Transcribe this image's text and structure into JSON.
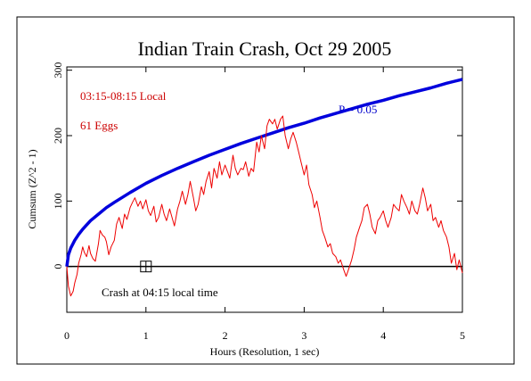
{
  "chart_data": {
    "type": "line",
    "title": "Indian Train Crash, Oct 29 2005",
    "xlabel": "Hours (Resolution, 1 sec)",
    "ylabel": "Cumsum (Z^2 - 1)",
    "xlim": [
      0,
      5
    ],
    "ylim": [
      -70,
      305
    ],
    "x_ticks": [
      0,
      1,
      2,
      3,
      4,
      5
    ],
    "y_ticks": [
      0,
      100,
      200,
      300
    ],
    "grid": false,
    "annotations": {
      "period": "03:15-08:15 Local",
      "eggs": "61 Eggs",
      "p_label": "P = 0.05",
      "event": "Crash at 04:15 local time"
    },
    "event_marker": {
      "x": 1.0,
      "y": 0
    },
    "colors": {
      "cumsum": "#ee0000",
      "envelope": "#0000dd",
      "baseline": "#000000",
      "annotation_red": "#cc0000",
      "annotation_blue": "#0000cc"
    },
    "series": [
      {
        "role": "cumsum",
        "color": "#ee0000",
        "x": [
          0,
          0.02,
          0.05,
          0.08,
          0.1,
          0.13,
          0.15,
          0.18,
          0.2,
          0.22,
          0.25,
          0.28,
          0.3,
          0.33,
          0.36,
          0.4,
          0.42,
          0.45,
          0.48,
          0.5,
          0.53,
          0.56,
          0.6,
          0.63,
          0.66,
          0.7,
          0.73,
          0.76,
          0.8,
          0.83,
          0.86,
          0.9,
          0.93,
          0.96,
          1.0,
          1.03,
          1.06,
          1.1,
          1.13,
          1.16,
          1.2,
          1.23,
          1.26,
          1.3,
          1.33,
          1.36,
          1.4,
          1.43,
          1.46,
          1.5,
          1.53,
          1.56,
          1.6,
          1.63,
          1.66,
          1.7,
          1.73,
          1.76,
          1.8,
          1.83,
          1.86,
          1.9,
          1.93,
          1.96,
          2.0,
          2.03,
          2.06,
          2.1,
          2.13,
          2.16,
          2.2,
          2.23,
          2.26,
          2.3,
          2.33,
          2.36,
          2.4,
          2.43,
          2.46,
          2.5,
          2.53,
          2.56,
          2.6,
          2.63,
          2.66,
          2.7,
          2.73,
          2.76,
          2.8,
          2.83,
          2.86,
          2.9,
          2.93,
          2.96,
          3.0,
          3.03,
          3.06,
          3.1,
          3.13,
          3.16,
          3.2,
          3.23,
          3.26,
          3.3,
          3.33,
          3.36,
          3.4,
          3.43,
          3.46,
          3.5,
          3.53,
          3.56,
          3.6,
          3.63,
          3.66,
          3.7,
          3.73,
          3.76,
          3.8,
          3.83,
          3.86,
          3.9,
          3.93,
          3.96,
          4.0,
          4.03,
          4.06,
          4.1,
          4.13,
          4.16,
          4.2,
          4.23,
          4.26,
          4.3,
          4.33,
          4.36,
          4.4,
          4.43,
          4.46,
          4.5,
          4.53,
          4.56,
          4.6,
          4.63,
          4.66,
          4.7,
          4.73,
          4.76,
          4.8,
          4.83,
          4.86,
          4.9,
          4.93,
          4.96,
          5.0
        ],
        "values": [
          0,
          -30,
          -45,
          -38,
          -25,
          -12,
          5,
          18,
          30,
          22,
          15,
          32,
          20,
          12,
          8,
          35,
          55,
          48,
          45,
          38,
          18,
          30,
          40,
          65,
          75,
          58,
          80,
          72,
          90,
          98,
          105,
          92,
          100,
          88,
          102,
          85,
          78,
          92,
          68,
          75,
          95,
          80,
          70,
          88,
          75,
          62,
          88,
          100,
          115,
          95,
          110,
          130,
          105,
          85,
          95,
          122,
          110,
          130,
          145,
          120,
          150,
          135,
          160,
          140,
          155,
          145,
          135,
          170,
          150,
          140,
          150,
          148,
          160,
          138,
          150,
          145,
          190,
          175,
          200,
          180,
          215,
          225,
          218,
          225,
          210,
          225,
          230,
          200,
          180,
          195,
          205,
          190,
          175,
          160,
          140,
          155,
          125,
          110,
          90,
          100,
          75,
          55,
          45,
          30,
          35,
          20,
          15,
          5,
          10,
          -5,
          -15,
          -5,
          10,
          25,
          45,
          60,
          70,
          90,
          95,
          80,
          60,
          50,
          70,
          75,
          85,
          70,
          60,
          75,
          95,
          90,
          85,
          110,
          100,
          90,
          80,
          100,
          85,
          80,
          95,
          120,
          105,
          85,
          95,
          70,
          75,
          60,
          70,
          55,
          45,
          30,
          5,
          20,
          -5,
          10,
          -10
        ]
      },
      {
        "role": "envelope",
        "color": "#0000dd",
        "label": "P = 0.05",
        "x": [
          0,
          0.02,
          0.05,
          0.1,
          0.15,
          0.2,
          0.3,
          0.4,
          0.5,
          0.6,
          0.8,
          1.0,
          1.2,
          1.4,
          1.6,
          1.8,
          2.0,
          2.2,
          2.4,
          2.6,
          2.8,
          3.0,
          3.2,
          3.4,
          3.6,
          3.8,
          4.0,
          4.2,
          4.4,
          4.6,
          4.8,
          5.0
        ],
        "values": [
          0,
          18,
          28,
          40,
          49,
          57,
          70,
          80,
          90,
          98,
          113,
          127,
          139,
          150,
          160,
          170,
          179,
          188,
          196,
          204,
          212,
          219,
          227,
          234,
          241,
          248,
          254,
          261,
          267,
          273,
          280,
          286
        ]
      }
    ]
  }
}
